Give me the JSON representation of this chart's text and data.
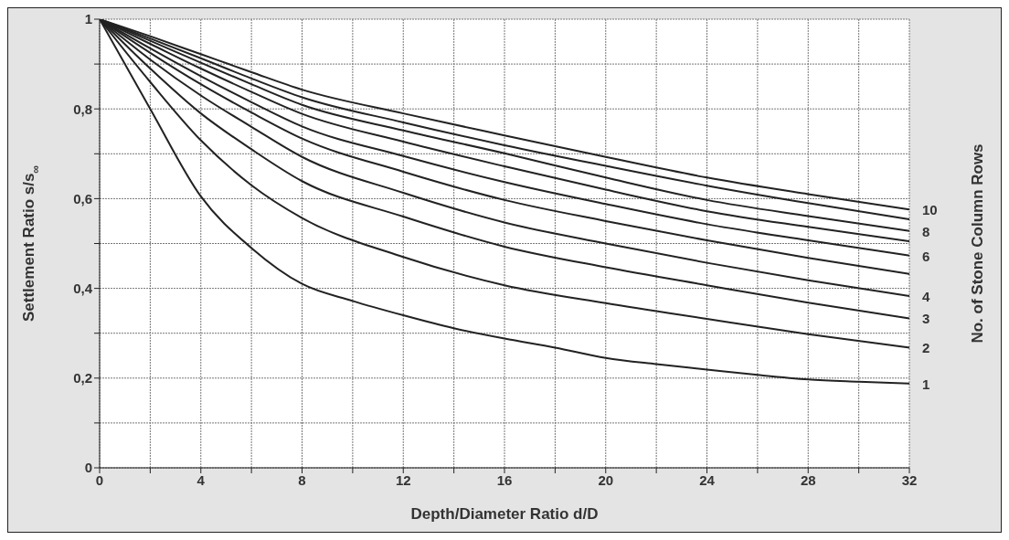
{
  "chart_data": {
    "type": "line",
    "xlabel": "Depth/Diameter Ratio d/D",
    "ylabel": "Settlement Ratio s/s$_{∞}$",
    "y2label": "No. of Stone Column Rows",
    "xlim": [
      0,
      32
    ],
    "xticks": [
      0,
      {
        "value": 2,
        "label": null
      },
      4,
      {
        "value": 6,
        "label": null
      },
      8,
      {
        "value": 10,
        "label": null
      },
      12,
      {
        "value": 14,
        "label": null
      },
      16,
      {
        "value": 18,
        "label": null
      },
      20,
      {
        "value": 22,
        "label": null
      },
      24,
      {
        "value": 26,
        "label": null
      },
      28,
      {
        "value": 30,
        "label": null
      },
      32
    ],
    "ylim": [
      0,
      1
    ],
    "yticks": [
      0,
      {
        "value": 0.1,
        "label": null
      },
      {
        "value": 0.2,
        "label": "0,2"
      },
      {
        "value": 0.3,
        "label": null
      },
      {
        "value": 0.4,
        "label": "0,4"
      },
      {
        "value": 0.5,
        "label": null
      },
      {
        "value": 0.6,
        "label": "0,6"
      },
      {
        "value": 0.7,
        "label": null
      },
      {
        "value": 0.8,
        "label": "0,8"
      },
      {
        "value": 0.9,
        "label": null
      },
      1
    ],
    "grid": true,
    "series": [
      {
        "name": "1",
        "color": "#222222",
        "x": [
          0,
          2,
          4,
          6,
          8,
          10,
          12,
          14,
          16,
          18,
          20,
          22,
          24,
          26,
          28,
          30,
          32
        ],
        "values": [
          1,
          0.8,
          0.605,
          0.49,
          0.41,
          0.372,
          0.34,
          0.311,
          0.288,
          0.268,
          0.245,
          0.231,
          0.219,
          0.207,
          0.197,
          0.192,
          0.188
        ]
      },
      {
        "name": "2",
        "color": "#222222",
        "x": [
          0,
          2,
          4,
          6,
          8,
          12,
          16,
          20,
          24,
          28,
          32
        ],
        "values": [
          1,
          0.86,
          0.73,
          0.63,
          0.557,
          0.47,
          0.407,
          0.367,
          0.332,
          0.298,
          0.268
        ]
      },
      {
        "name": "3",
        "color": "#222222",
        "x": [
          0,
          2,
          4,
          6,
          8,
          12,
          16,
          20,
          24,
          28,
          32
        ],
        "values": [
          1,
          0.89,
          0.79,
          0.71,
          0.639,
          0.56,
          0.493,
          0.447,
          0.407,
          0.368,
          0.333
        ]
      },
      {
        "name": "4",
        "color": "#222222",
        "x": [
          0,
          2,
          4,
          6,
          8,
          12,
          16,
          20,
          24,
          28,
          32
        ],
        "values": [
          1,
          0.91,
          0.83,
          0.76,
          0.693,
          0.613,
          0.547,
          0.5,
          0.457,
          0.418,
          0.383
        ]
      },
      {
        "color": "#222222",
        "x": [
          0,
          2,
          4,
          6,
          8,
          12,
          16,
          20,
          24,
          28,
          32
        ],
        "values": [
          1,
          0.925,
          0.855,
          0.792,
          0.734,
          0.66,
          0.597,
          0.55,
          0.507,
          0.468,
          0.432
        ]
      },
      {
        "name": "6",
        "color": "#222222",
        "x": [
          0,
          2,
          4,
          6,
          8,
          12,
          16,
          20,
          24,
          28,
          32
        ],
        "values": [
          1,
          0.935,
          0.873,
          0.815,
          0.761,
          0.695,
          0.637,
          0.588,
          0.543,
          0.507,
          0.473
        ]
      },
      {
        "color": "#222222",
        "x": [
          0,
          2,
          4,
          6,
          8,
          12,
          16,
          20,
          24,
          28,
          32
        ],
        "values": [
          1,
          0.945,
          0.89,
          0.838,
          0.789,
          0.727,
          0.672,
          0.62,
          0.572,
          0.537,
          0.505
        ]
      },
      {
        "name": "8",
        "color": "#222222",
        "x": [
          0,
          2,
          4,
          6,
          8,
          12,
          16,
          20,
          24,
          28,
          32
        ],
        "values": [
          1,
          0.952,
          0.903,
          0.855,
          0.809,
          0.752,
          0.701,
          0.647,
          0.597,
          0.561,
          0.528
        ]
      },
      {
        "color": "#222222",
        "x": [
          0,
          2,
          4,
          6,
          8,
          12,
          16,
          20,
          24,
          28,
          32
        ],
        "values": [
          1,
          0.957,
          0.913,
          0.868,
          0.826,
          0.77,
          0.719,
          0.673,
          0.629,
          0.59,
          0.554
        ]
      },
      {
        "name": "10",
        "color": "#222222",
        "x": [
          0,
          2,
          4,
          6,
          8,
          12,
          16,
          20,
          24,
          28,
          32
        ],
        "values": [
          1,
          0.962,
          0.922,
          0.882,
          0.843,
          0.79,
          0.741,
          0.693,
          0.647,
          0.61,
          0.576
        ]
      }
    ]
  }
}
